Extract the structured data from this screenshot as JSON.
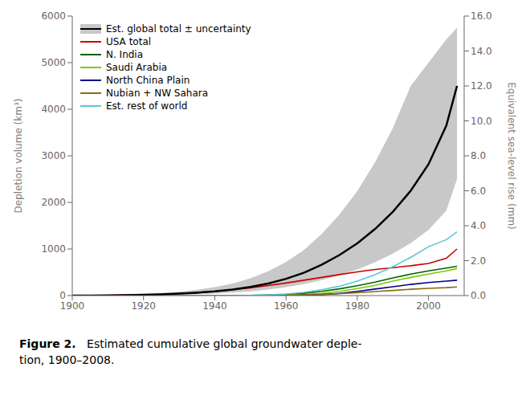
{
  "chart_data": {
    "type": "line",
    "x": [
      1900,
      1905,
      1910,
      1915,
      1920,
      1925,
      1930,
      1935,
      1940,
      1945,
      1950,
      1955,
      1960,
      1965,
      1970,
      1975,
      1980,
      1985,
      1990,
      1995,
      2000,
      2005,
      2008
    ],
    "series": [
      {
        "name": "Est. global total ± uncertainty",
        "colors": [
          "#000000",
          "#c8c8c8"
        ],
        "values": [
          0,
          2,
          5,
          10,
          18,
          28,
          42,
          62,
          90,
          130,
          185,
          260,
          360,
          490,
          660,
          870,
          1120,
          1430,
          1800,
          2250,
          2820,
          3650,
          4500
        ],
        "lower": [
          0,
          1,
          2,
          5,
          9,
          14,
          21,
          31,
          45,
          65,
          92,
          130,
          180,
          245,
          330,
          435,
          560,
          715,
          900,
          1125,
          1410,
          1825,
          2500
        ],
        "upper": [
          0,
          4,
          10,
          20,
          36,
          56,
          84,
          124,
          180,
          260,
          370,
          520,
          720,
          980,
          1320,
          1740,
          2240,
          2860,
          3600,
          4500,
          5000,
          5500,
          5750
        ]
      },
      {
        "name": "USA total",
        "color": "#cc0000",
        "values": [
          0,
          2,
          5,
          10,
          17,
          27,
          42,
          62,
          90,
          125,
          165,
          215,
          270,
          330,
          390,
          450,
          510,
          560,
          600,
          640,
          690,
          800,
          1000
        ]
      },
      {
        "name": "N. India",
        "color": "#006400",
        "values": [
          0,
          0,
          0,
          0,
          0,
          0,
          0,
          0,
          0,
          2,
          5,
          12,
          25,
          50,
          90,
          145,
          210,
          290,
          380,
          460,
          530,
          590,
          630
        ]
      },
      {
        "name": "Saudi Arabia",
        "color": "#7dc900",
        "values": [
          0,
          0,
          0,
          0,
          0,
          0,
          0,
          0,
          0,
          0,
          0,
          2,
          8,
          20,
          45,
          90,
          150,
          220,
          310,
          390,
          460,
          530,
          580
        ]
      },
      {
        "name": "North China Plain",
        "color": "#00008b",
        "values": [
          0,
          0,
          0,
          0,
          0,
          0,
          0,
          0,
          0,
          0,
          0,
          0,
          2,
          8,
          20,
          45,
          90,
          140,
          190,
          240,
          280,
          310,
          330
        ]
      },
      {
        "name": "Nubian + NW Sahara",
        "color": "#8b6914",
        "values": [
          0,
          0,
          0,
          0,
          0,
          0,
          0,
          0,
          0,
          0,
          2,
          5,
          10,
          18,
          28,
          42,
          62,
          85,
          110,
          135,
          155,
          170,
          185
        ]
      },
      {
        "name": "Est. rest of world",
        "color": "#5bc8d2",
        "values": [
          0,
          0,
          0,
          0,
          0,
          0,
          0,
          0,
          0,
          0,
          5,
          15,
          35,
          70,
          125,
          200,
          310,
          450,
          620,
          820,
          1050,
          1200,
          1370
        ]
      }
    ],
    "xlim": [
      1900,
      2010
    ],
    "xticks": [
      1900,
      1920,
      1940,
      1960,
      1980,
      2000
    ],
    "ylim": [
      0,
      6000
    ],
    "yticks": [
      0,
      1000,
      2000,
      3000,
      4000,
      5000,
      6000
    ],
    "ylabel": "Depletion volume (km³)",
    "y2lim": [
      0,
      16
    ],
    "y2ticks": [
      {
        "value": 0,
        "label": "0.0"
      },
      {
        "value": 2,
        "label": "2.0"
      },
      {
        "value": 4,
        "label": "4.0"
      },
      {
        "value": 6,
        "label": "6.0"
      },
      {
        "value": 8,
        "label": "8.0"
      },
      {
        "value": 10,
        "label": "10.0"
      },
      {
        "value": 12,
        "label": "12.0"
      },
      {
        "value": 14,
        "label": "14.0"
      },
      {
        "value": 16,
        "label": "16.0"
      }
    ],
    "y2label": "Equivalent sea-level rise (mm)",
    "legend": "upper left",
    "grid": false,
    "annotations": [
      "Figure 2.",
      "   Estimated cumulative global groundwater deple-\ntion, 1900–2008."
    ]
  }
}
